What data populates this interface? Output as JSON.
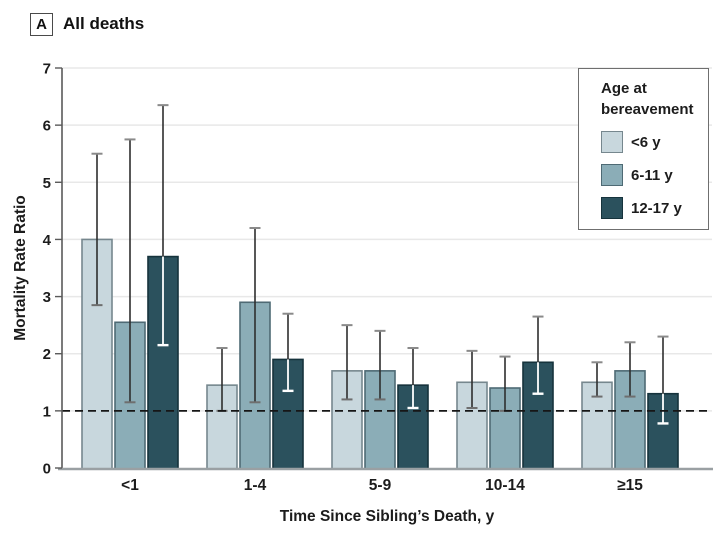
{
  "header": {
    "panel_label": "A",
    "title": "All deaths"
  },
  "chart_data": {
    "type": "bar",
    "title": "All deaths",
    "xlabel": "Time Since Sibling’s Death, y",
    "ylabel": "Mortality Rate Ratio",
    "ylim": [
      0,
      7
    ],
    "yticks": [
      0,
      1,
      2,
      3,
      4,
      5,
      6,
      7
    ],
    "grid": true,
    "reference_line_y": 1,
    "legend_position": "top-right",
    "legend_title": "Age at bereavement",
    "categories": [
      "<1",
      "1-4",
      "5-9",
      "10-14",
      "≥15"
    ],
    "series": [
      {
        "name": "<6 y",
        "color": "#c8d7dd",
        "border": "#76878e",
        "values": [
          4.0,
          1.45,
          1.7,
          1.5,
          1.5
        ],
        "ci_low": [
          2.85,
          1.0,
          1.2,
          1.05,
          1.25
        ],
        "ci_high": [
          5.5,
          2.1,
          2.5,
          2.05,
          1.85
        ]
      },
      {
        "name": "6-11 y",
        "color": "#8badb7",
        "border": "#4e6a74",
        "values": [
          2.55,
          2.9,
          1.7,
          1.4,
          1.7
        ],
        "ci_low": [
          1.15,
          1.15,
          1.2,
          1.0,
          1.25
        ],
        "ci_high": [
          5.75,
          4.2,
          2.4,
          1.95,
          2.2
        ]
      },
      {
        "name": "12-17 y",
        "color": "#2b515d",
        "border": "#16333c",
        "values": [
          3.7,
          1.9,
          1.45,
          1.85,
          1.3
        ],
        "ci_low": [
          2.15,
          1.35,
          1.05,
          1.3,
          0.78
        ],
        "ci_high": [
          6.35,
          2.7,
          2.1,
          2.65,
          2.3
        ]
      }
    ]
  }
}
